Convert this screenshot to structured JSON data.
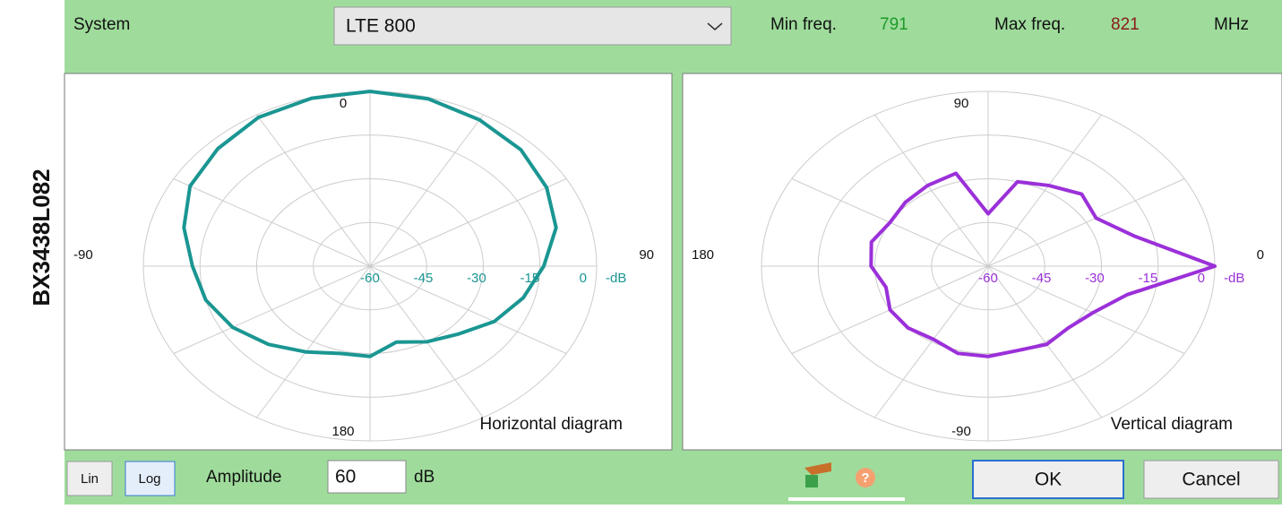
{
  "side_label": "BX3438L082",
  "toolbar": {
    "system_label": "System",
    "system_value": "LTE 800",
    "min_label": "Min freq.",
    "min_value": "791",
    "max_label": "Max freq.",
    "max_value": "821",
    "unit": "MHz"
  },
  "footer": {
    "lin": "Lin",
    "log": "Log",
    "amplitude_label": "Amplitude",
    "amplitude_value": "60",
    "amplitude_unit": "dB",
    "ok": "OK",
    "cancel": "Cancel"
  },
  "chart_data": [
    {
      "type": "polar",
      "title": "Horizontal diagram",
      "zero": "top",
      "direction": "clockwise",
      "color": "#1a9692",
      "angle_ticks": [
        0,
        90,
        180,
        -90
      ],
      "rlim": [
        -60,
        0
      ],
      "rticks": [
        -60,
        -45,
        -30,
        -15,
        0
      ],
      "r_unit": "-dB",
      "angles": [
        0,
        15,
        30,
        45,
        60,
        75,
        90,
        105,
        120,
        135,
        150,
        165,
        180,
        195,
        210,
        225,
        240,
        255,
        270,
        285,
        300,
        315,
        330,
        345
      ],
      "values": [
        0,
        -0.5,
        -2,
        -3.5,
        -6,
        -9,
        -14,
        -18,
        -22,
        -27,
        -30,
        -33,
        -29,
        -29,
        -26,
        -22,
        -18,
        -15,
        -13,
        -9,
        -5,
        -3,
        -1,
        -0.3
      ]
    },
    {
      "type": "polar",
      "title": "Vertical diagram",
      "zero": "right",
      "direction": "counterclockwise",
      "color": "#9b30d9",
      "angle_ticks": [
        0,
        90,
        180,
        -90
      ],
      "rlim": [
        -60,
        0
      ],
      "rticks": [
        -60,
        -45,
        -30,
        -15,
        0
      ],
      "r_unit": "-dB",
      "angles": [
        0,
        15,
        30,
        45,
        60,
        75,
        90,
        105,
        120,
        135,
        150,
        165,
        180,
        195,
        210,
        225,
        240,
        255,
        270,
        285,
        300,
        315,
        330,
        345
      ],
      "values": [
        0,
        -20,
        -27,
        -25,
        -28,
        -30,
        -42,
        -27,
        -28,
        -29,
        -30,
        -28,
        -29,
        -32,
        -30,
        -30,
        -31,
        -29,
        -29,
        -30,
        -29,
        -30,
        -28,
        -22
      ]
    }
  ]
}
